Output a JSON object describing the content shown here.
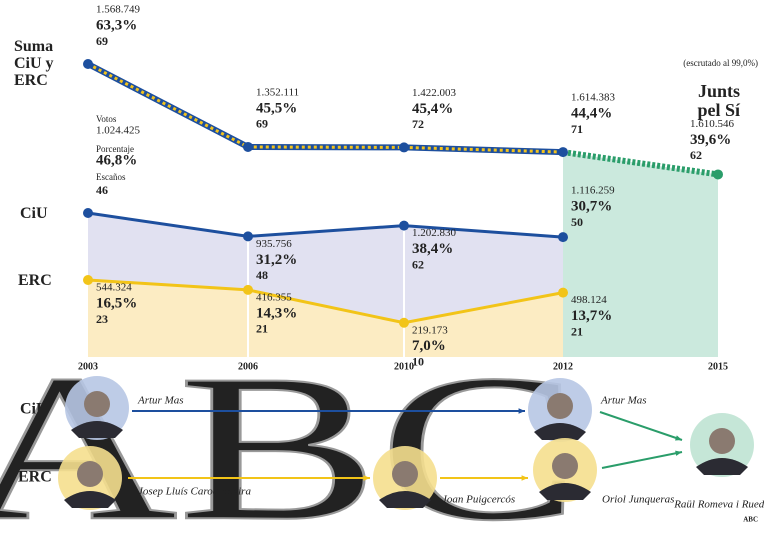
{
  "chart_data": {
    "type": "line",
    "categories": [
      2003,
      2006,
      2010,
      2012,
      2015
    ],
    "row_labels": {
      "votes": "Votos",
      "percent": "Porcentaje",
      "seats": "Escaños"
    },
    "note": "(escrutado al 99,0%)",
    "series": [
      {
        "name": "Suma CiU y ERC",
        "color": "#1d4f9e",
        "dash_color": "#f3c31c",
        "values": [
          63.3,
          45.5,
          45.4,
          44.4,
          null
        ],
        "value_labels": [
          "63,3%",
          "45,5%",
          "45,4%",
          "44,4%",
          null
        ],
        "votes": [
          {
            "value": 1568749,
            "label": "1.568.749"
          },
          {
            "value": 1352111,
            "label": "1.352.111"
          },
          {
            "value": 1422003,
            "label": "1.422.003"
          },
          {
            "value": 1614383,
            "label": "1.614.383"
          },
          null
        ],
        "seats": [
          69,
          69,
          72,
          71,
          null
        ]
      },
      {
        "name": "CiU",
        "color": "#1d4f9e",
        "values": [
          46.8,
          31.2,
          38.4,
          30.7,
          null
        ],
        "value_labels": [
          "46,8%",
          "31,2%",
          "38,4%",
          "30,7%",
          null
        ],
        "votes": [
          {
            "value": 1024425,
            "label": "1.024.425"
          },
          {
            "value": 935756,
            "label": "935.756"
          },
          {
            "value": 1202830,
            "label": "1.202.830"
          },
          {
            "value": 1116259,
            "label": "1.116.259"
          },
          null
        ],
        "seats": [
          46,
          48,
          62,
          50,
          null
        ]
      },
      {
        "name": "ERC",
        "color": "#f2c418",
        "values": [
          16.5,
          14.3,
          7.0,
          13.7,
          null
        ],
        "value_labels": [
          "16,5%",
          "14,3%",
          "7,0%",
          "13,7%",
          null
        ],
        "votes": [
          {
            "value": 544324,
            "label": "544.324"
          },
          {
            "value": 416355,
            "label": "416.355"
          },
          {
            "value": 219173,
            "label": "219.173"
          },
          {
            "value": 498124,
            "label": "498.124"
          },
          null
        ],
        "seats": [
          23,
          21,
          10,
          21,
          null
        ]
      },
      {
        "name": "Junts pel Sí",
        "color": "#2a9d6a",
        "values": [
          null,
          null,
          null,
          null,
          39.6
        ],
        "value_labels": [
          null,
          null,
          null,
          null,
          "39,6%"
        ],
        "votes": [
          null,
          null,
          null,
          null,
          {
            "value": 1610546,
            "label": "1.610.546"
          }
        ],
        "seats": [
          null,
          null,
          null,
          null,
          62
        ]
      }
    ]
  },
  "leaders": {
    "rows": [
      {
        "party": "CiU",
        "people": [
          "Artur Mas",
          "Artur Mas"
        ]
      },
      {
        "party": "ERC",
        "people": [
          "Josep Lluís Carod Rovira",
          "Joan Puigcercós",
          "Oriol Junqueras"
        ]
      }
    ],
    "joint": "Raül Romeva i Rueda"
  },
  "watermark": "ABC",
  "credit": "ABC"
}
